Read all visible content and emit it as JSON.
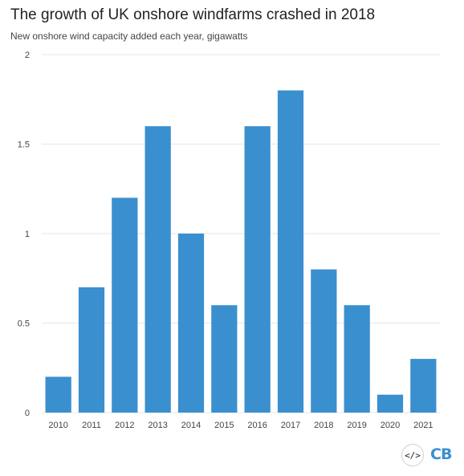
{
  "chart_data": {
    "type": "bar",
    "title": "The growth of UK onshore windfarms crashed in 2018",
    "subtitle": "New onshore wind capacity added each year, gigawatts",
    "categories": [
      "2010",
      "2011",
      "2012",
      "2013",
      "2014",
      "2015",
      "2016",
      "2017",
      "2018",
      "2019",
      "2020",
      "2021"
    ],
    "values": [
      0.2,
      0.7,
      1.2,
      1.6,
      1.0,
      0.6,
      1.6,
      1.8,
      0.8,
      0.6,
      0.1,
      0.3
    ],
    "ylim": [
      0,
      2
    ],
    "yticks": [
      0,
      0.5,
      1,
      1.5,
      2
    ],
    "ytick_labels": [
      "0",
      "0.5",
      "1",
      "1.5",
      "2"
    ],
    "xlabel": "",
    "ylabel": "",
    "grid": true,
    "bar_color": "#3a8fcf"
  },
  "footer": {
    "embed_icon": "</>",
    "logo": "CB"
  }
}
